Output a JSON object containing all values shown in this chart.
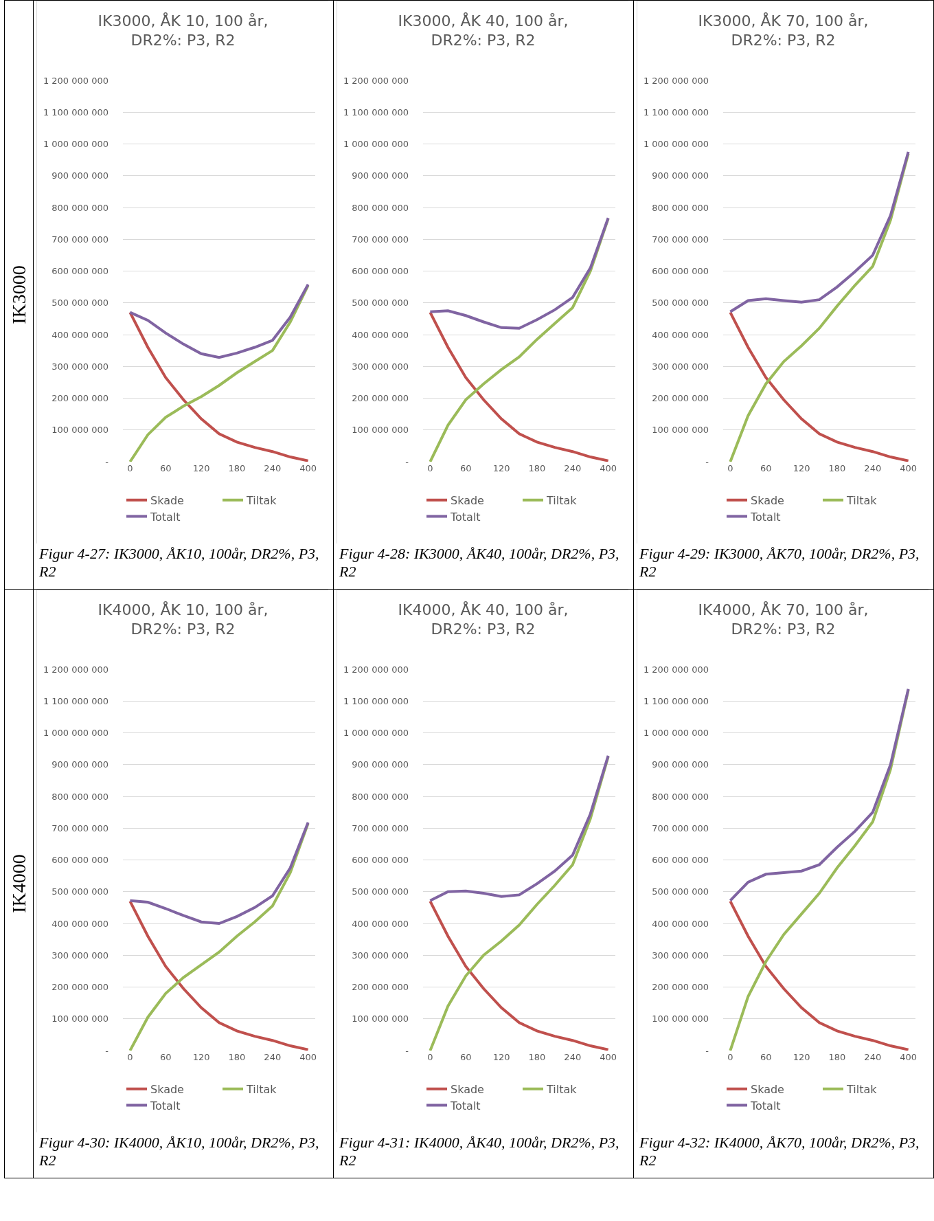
{
  "chart_data": [
    {
      "type": "line",
      "title": "IK3000, ÅK 10, 100 år, DR2%: P3, R2",
      "annotations": [
        "IK3000",
        "Figur 4-27: IK3000, ÅK10, 100år, DR2%, P3, R2"
      ],
      "categories": [
        "0",
        null,
        "60",
        null,
        "120",
        null,
        "180",
        null,
        "240",
        null,
        "400"
      ],
      "series": [
        {
          "name": "Skade",
          "color": "#c0504d",
          "values": [
            470000000,
            360000000,
            265000000,
            195000000,
            135000000,
            88000000,
            62000000,
            45000000,
            32000000,
            15000000,
            3000000
          ]
        },
        {
          "name": "Tiltak",
          "color": "#9bbb59",
          "values": [
            0,
            85000000,
            140000000,
            175000000,
            205000000,
            240000000,
            280000000,
            315000000,
            350000000,
            440000000,
            555000000
          ]
        },
        {
          "name": "Totalt",
          "color": "#8064a2",
          "values": [
            470000000,
            445000000,
            405000000,
            370000000,
            340000000,
            328000000,
            342000000,
            360000000,
            382000000,
            455000000,
            558000000
          ]
        }
      ],
      "ylim": [
        0,
        1200000000
      ],
      "yticks": [
        {
          "value": 0,
          "label": "-"
        },
        {
          "value": 100000000,
          "label": "100 000 000"
        },
        {
          "value": 200000000,
          "label": "200 000 000"
        },
        {
          "value": 300000000,
          "label": "300 000 000"
        },
        {
          "value": 400000000,
          "label": "400 000 000"
        },
        {
          "value": 500000000,
          "label": "500 000 000"
        },
        {
          "value": 600000000,
          "label": "600 000 000"
        },
        {
          "value": 700000000,
          "label": "700 000 000"
        },
        {
          "value": 800000000,
          "label": "800 000 000"
        },
        {
          "value": 900000000,
          "label": "900 000 000"
        },
        {
          "value": 1000000000,
          "label": "1 000 000 000"
        },
        {
          "value": 1100000000,
          "label": "1 100 000 000"
        },
        {
          "value": 1200000000,
          "label": "1 200 000 000"
        }
      ],
      "grid": "y",
      "legend": "bottom",
      "marker": "none",
      "line_style": "solid"
    },
    {
      "type": "line",
      "title": "IK3000, ÅK 40, 100 år, DR2%: P3, R2",
      "annotations": [
        "Figur 4-28: IK3000, ÅK40, 100år, DR2%, P3, R2"
      ],
      "categories": [
        "0",
        null,
        "60",
        null,
        "120",
        null,
        "180",
        null,
        "240",
        null,
        "400"
      ],
      "series": [
        {
          "name": "Skade",
          "color": "#c0504d",
          "values": [
            470000000,
            360000000,
            265000000,
            195000000,
            135000000,
            88000000,
            62000000,
            45000000,
            32000000,
            15000000,
            3000000
          ]
        },
        {
          "name": "Tiltak",
          "color": "#9bbb59",
          "values": [
            0,
            115000000,
            195000000,
            245000000,
            290000000,
            330000000,
            385000000,
            435000000,
            485000000,
            600000000,
            765000000
          ]
        },
        {
          "name": "Totalt",
          "color": "#8064a2",
          "values": [
            472000000,
            475000000,
            460000000,
            440000000,
            422000000,
            420000000,
            447000000,
            478000000,
            517000000,
            610000000,
            767000000
          ]
        }
      ],
      "ylim": [
        0,
        1200000000
      ],
      "yticks": [
        {
          "value": 0,
          "label": "-"
        },
        {
          "value": 100000000,
          "label": "100 000 000"
        },
        {
          "value": 200000000,
          "label": "200 000 000"
        },
        {
          "value": 300000000,
          "label": "300 000 000"
        },
        {
          "value": 400000000,
          "label": "400 000 000"
        },
        {
          "value": 500000000,
          "label": "500 000 000"
        },
        {
          "value": 600000000,
          "label": "600 000 000"
        },
        {
          "value": 700000000,
          "label": "700 000 000"
        },
        {
          "value": 800000000,
          "label": "800 000 000"
        },
        {
          "value": 900000000,
          "label": "900 000 000"
        },
        {
          "value": 1000000000,
          "label": "1 000 000 000"
        },
        {
          "value": 1100000000,
          "label": "1 100 000 000"
        },
        {
          "value": 1200000000,
          "label": "1 200 000 000"
        }
      ],
      "grid": "y",
      "legend": "bottom",
      "marker": "none",
      "line_style": "solid"
    },
    {
      "type": "line",
      "title": "IK3000, ÅK 70, 100 år, DR2%: P3, R2",
      "annotations": [
        "Figur 4-29: IK3000, ÅK70, 100år, DR2%, P3, R2"
      ],
      "categories": [
        "0",
        null,
        "60",
        null,
        "120",
        null,
        "180",
        null,
        "240",
        null,
        "400"
      ],
      "series": [
        {
          "name": "Skade",
          "color": "#c0504d",
          "values": [
            470000000,
            360000000,
            265000000,
            195000000,
            135000000,
            88000000,
            62000000,
            45000000,
            32000000,
            15000000,
            3000000
          ]
        },
        {
          "name": "Tiltak",
          "color": "#9bbb59",
          "values": [
            0,
            145000000,
            245000000,
            315000000,
            365000000,
            420000000,
            490000000,
            555000000,
            615000000,
            760000000,
            970000000
          ]
        },
        {
          "name": "Totalt",
          "color": "#8064a2",
          "values": [
            472000000,
            507000000,
            513000000,
            507000000,
            502000000,
            510000000,
            550000000,
            598000000,
            650000000,
            775000000,
            975000000
          ]
        }
      ],
      "ylim": [
        0,
        1200000000
      ],
      "yticks": [
        {
          "value": 0,
          "label": "-"
        },
        {
          "value": 100000000,
          "label": "100 000 000"
        },
        {
          "value": 200000000,
          "label": "200 000 000"
        },
        {
          "value": 300000000,
          "label": "300 000 000"
        },
        {
          "value": 400000000,
          "label": "400 000 000"
        },
        {
          "value": 500000000,
          "label": "500 000 000"
        },
        {
          "value": 600000000,
          "label": "600 000 000"
        },
        {
          "value": 700000000,
          "label": "700 000 000"
        },
        {
          "value": 800000000,
          "label": "800 000 000"
        },
        {
          "value": 900000000,
          "label": "900 000 000"
        },
        {
          "value": 1000000000,
          "label": "1 000 000 000"
        },
        {
          "value": 1100000000,
          "label": "1 100 000 000"
        },
        {
          "value": 1200000000,
          "label": "1 200 000 000"
        }
      ],
      "grid": "y",
      "legend": "bottom",
      "marker": "none",
      "line_style": "solid"
    },
    {
      "type": "line",
      "title": "IK4000, ÅK 10, 100 år, DR2%: P3, R2",
      "annotations": [
        "IK4000",
        "Figur 4-30: IK4000, ÅK10, 100år, DR2%, P3, R2"
      ],
      "categories": [
        "0",
        null,
        "60",
        null,
        "120",
        null,
        "180",
        null,
        "240",
        null,
        "400"
      ],
      "series": [
        {
          "name": "Skade",
          "color": "#c0504d",
          "values": [
            470000000,
            360000000,
            265000000,
            195000000,
            135000000,
            88000000,
            62000000,
            45000000,
            32000000,
            15000000,
            3000000
          ]
        },
        {
          "name": "Tiltak",
          "color": "#9bbb59",
          "values": [
            0,
            105000000,
            180000000,
            230000000,
            270000000,
            310000000,
            360000000,
            405000000,
            455000000,
            560000000,
            715000000
          ]
        },
        {
          "name": "Totalt",
          "color": "#8064a2",
          "values": [
            472000000,
            467000000,
            447000000,
            425000000,
            405000000,
            400000000,
            422000000,
            450000000,
            487000000,
            575000000,
            718000000
          ]
        }
      ],
      "ylim": [
        0,
        1200000000
      ],
      "yticks": [
        {
          "value": 0,
          "label": "-"
        },
        {
          "value": 100000000,
          "label": "100 000 000"
        },
        {
          "value": 200000000,
          "label": "200 000 000"
        },
        {
          "value": 300000000,
          "label": "300 000 000"
        },
        {
          "value": 400000000,
          "label": "400 000 000"
        },
        {
          "value": 500000000,
          "label": "500 000 000"
        },
        {
          "value": 600000000,
          "label": "600 000 000"
        },
        {
          "value": 700000000,
          "label": "700 000 000"
        },
        {
          "value": 800000000,
          "label": "800 000 000"
        },
        {
          "value": 900000000,
          "label": "900 000 000"
        },
        {
          "value": 1000000000,
          "label": "1 000 000 000"
        },
        {
          "value": 1100000000,
          "label": "1 100 000 000"
        },
        {
          "value": 1200000000,
          "label": "1 200 000 000"
        }
      ],
      "grid": "y",
      "legend": "bottom",
      "marker": "none",
      "line_style": "solid"
    },
    {
      "type": "line",
      "title": "IK4000, ÅK 40, 100 år, DR2%: P3, R2",
      "annotations": [
        "Figur 4-31: IK4000, ÅK40, 100år, DR2%, P3, R2"
      ],
      "categories": [
        "0",
        null,
        "60",
        null,
        "120",
        null,
        "180",
        null,
        "240",
        null,
        "400"
      ],
      "series": [
        {
          "name": "Skade",
          "color": "#c0504d",
          "values": [
            470000000,
            360000000,
            265000000,
            195000000,
            135000000,
            88000000,
            62000000,
            45000000,
            32000000,
            15000000,
            3000000
          ]
        },
        {
          "name": "Tiltak",
          "color": "#9bbb59",
          "values": [
            0,
            140000000,
            235000000,
            300000000,
            345000000,
            395000000,
            460000000,
            520000000,
            585000000,
            730000000,
            925000000
          ]
        },
        {
          "name": "Totalt",
          "color": "#8064a2",
          "values": [
            472000000,
            500000000,
            502000000,
            495000000,
            485000000,
            490000000,
            525000000,
            565000000,
            615000000,
            745000000,
            928000000
          ]
        }
      ],
      "ylim": [
        0,
        1200000000
      ],
      "yticks": [
        {
          "value": 0,
          "label": "-"
        },
        {
          "value": 100000000,
          "label": "100 000 000"
        },
        {
          "value": 200000000,
          "label": "200 000 000"
        },
        {
          "value": 300000000,
          "label": "300 000 000"
        },
        {
          "value": 400000000,
          "label": "400 000 000"
        },
        {
          "value": 500000000,
          "label": "500 000 000"
        },
        {
          "value": 600000000,
          "label": "600 000 000"
        },
        {
          "value": 700000000,
          "label": "700 000 000"
        },
        {
          "value": 800000000,
          "label": "800 000 000"
        },
        {
          "value": 900000000,
          "label": "900 000 000"
        },
        {
          "value": 1000000000,
          "label": "1 000 000 000"
        },
        {
          "value": 1100000000,
          "label": "1 100 000 000"
        },
        {
          "value": 1200000000,
          "label": "1 200 000 000"
        }
      ],
      "grid": "y",
      "legend": "bottom",
      "marker": "none",
      "line_style": "solid"
    },
    {
      "type": "line",
      "title": "IK4000, ÅK 70, 100 år, DR2%: P3, R2",
      "annotations": [
        "Figur 4-32: IK4000, ÅK70, 100år, DR2%, P3, R2"
      ],
      "categories": [
        "0",
        null,
        "60",
        null,
        "120",
        null,
        "180",
        null,
        "240",
        null,
        "400"
      ],
      "series": [
        {
          "name": "Skade",
          "color": "#c0504d",
          "values": [
            470000000,
            360000000,
            265000000,
            195000000,
            135000000,
            88000000,
            62000000,
            45000000,
            32000000,
            15000000,
            3000000
          ]
        },
        {
          "name": "Tiltak",
          "color": "#9bbb59",
          "values": [
            0,
            170000000,
            280000000,
            365000000,
            430000000,
            495000000,
            575000000,
            645000000,
            720000000,
            885000000,
            1135000000
          ]
        },
        {
          "name": "Totalt",
          "color": "#8064a2",
          "values": [
            472000000,
            530000000,
            555000000,
            560000000,
            565000000,
            585000000,
            640000000,
            690000000,
            750000000,
            900000000,
            1138000000
          ]
        }
      ],
      "ylim": [
        0,
        1200000000
      ],
      "yticks": [
        {
          "value": 0,
          "label": "-"
        },
        {
          "value": 100000000,
          "label": "100 000 000"
        },
        {
          "value": 200000000,
          "label": "200 000 000"
        },
        {
          "value": 300000000,
          "label": "300 000 000"
        },
        {
          "value": 400000000,
          "label": "400 000 000"
        },
        {
          "value": 500000000,
          "label": "500 000 000"
        },
        {
          "value": 600000000,
          "label": "600 000 000"
        },
        {
          "value": 700000000,
          "label": "700 000 000"
        },
        {
          "value": 800000000,
          "label": "800 000 000"
        },
        {
          "value": 900000000,
          "label": "900 000 000"
        },
        {
          "value": 1000000000,
          "label": "1 000 000 000"
        },
        {
          "value": 1100000000,
          "label": "1 100 000 000"
        },
        {
          "value": 1200000000,
          "label": "1 200 000 000"
        }
      ],
      "grid": "y",
      "legend": "bottom",
      "marker": "none",
      "line_style": "solid"
    }
  ]
}
